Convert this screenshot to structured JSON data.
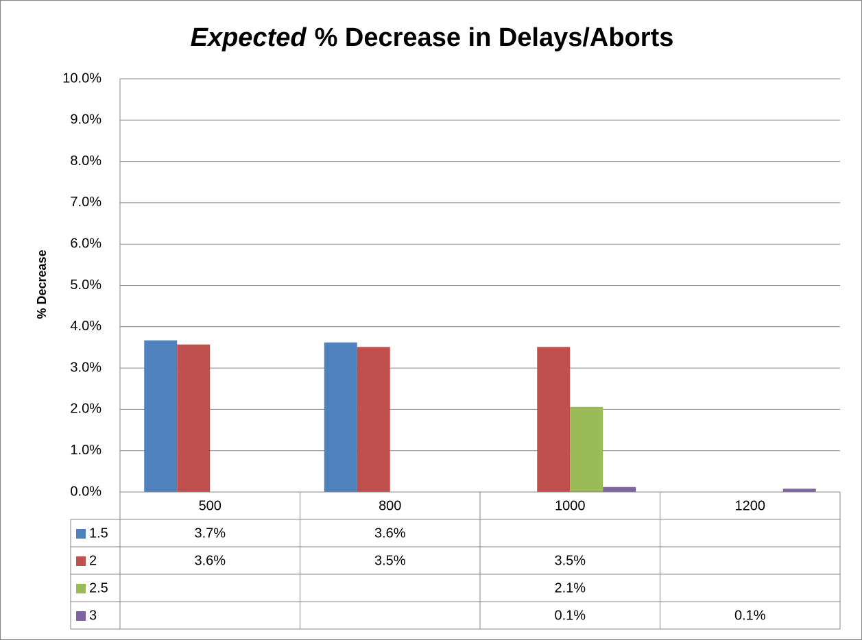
{
  "chart_data": {
    "type": "bar",
    "title_italic": "Expected",
    "title": "% Decrease in Delays/Aborts",
    "ylabel": "% Decrease",
    "categories": [
      "500",
      "800",
      "1000",
      "1200"
    ],
    "series": [
      {
        "name": "1.5",
        "color": "#4f81bd",
        "values": [
          3.67,
          3.62,
          null,
          null
        ],
        "value_labels": [
          "3.7%",
          "3.6%",
          null,
          null
        ]
      },
      {
        "name": "2",
        "color": "#c0504d",
        "values": [
          3.57,
          3.51,
          3.51,
          null
        ],
        "value_labels": [
          "3.6%",
          "3.5%",
          "3.5%",
          null
        ]
      },
      {
        "name": "2.5",
        "color": "#9bbb59",
        "values": [
          null,
          null,
          2.06,
          null
        ],
        "value_labels": [
          null,
          null,
          "2.1%",
          null
        ]
      },
      {
        "name": "3",
        "color": "#8064a2",
        "values": [
          null,
          null,
          0.12,
          0.08
        ],
        "value_labels": [
          null,
          null,
          "0.1%",
          "0.1%"
        ]
      }
    ],
    "ylim": [
      0,
      10
    ],
    "yticks": [
      {
        "value": 0,
        "label": "0.0%"
      },
      {
        "value": 1,
        "label": "1.0%"
      },
      {
        "value": 2,
        "label": "2.0%"
      },
      {
        "value": 3,
        "label": "3.0%"
      },
      {
        "value": 4,
        "label": "4.0%"
      },
      {
        "value": 5,
        "label": "5.0%"
      },
      {
        "value": 6,
        "label": "6.0%"
      },
      {
        "value": 7,
        "label": "7.0%"
      },
      {
        "value": 8,
        "label": "8.0%"
      },
      {
        "value": 9,
        "label": "9.0%"
      },
      {
        "value": 10,
        "label": "10.0%"
      }
    ],
    "grid": true
  }
}
